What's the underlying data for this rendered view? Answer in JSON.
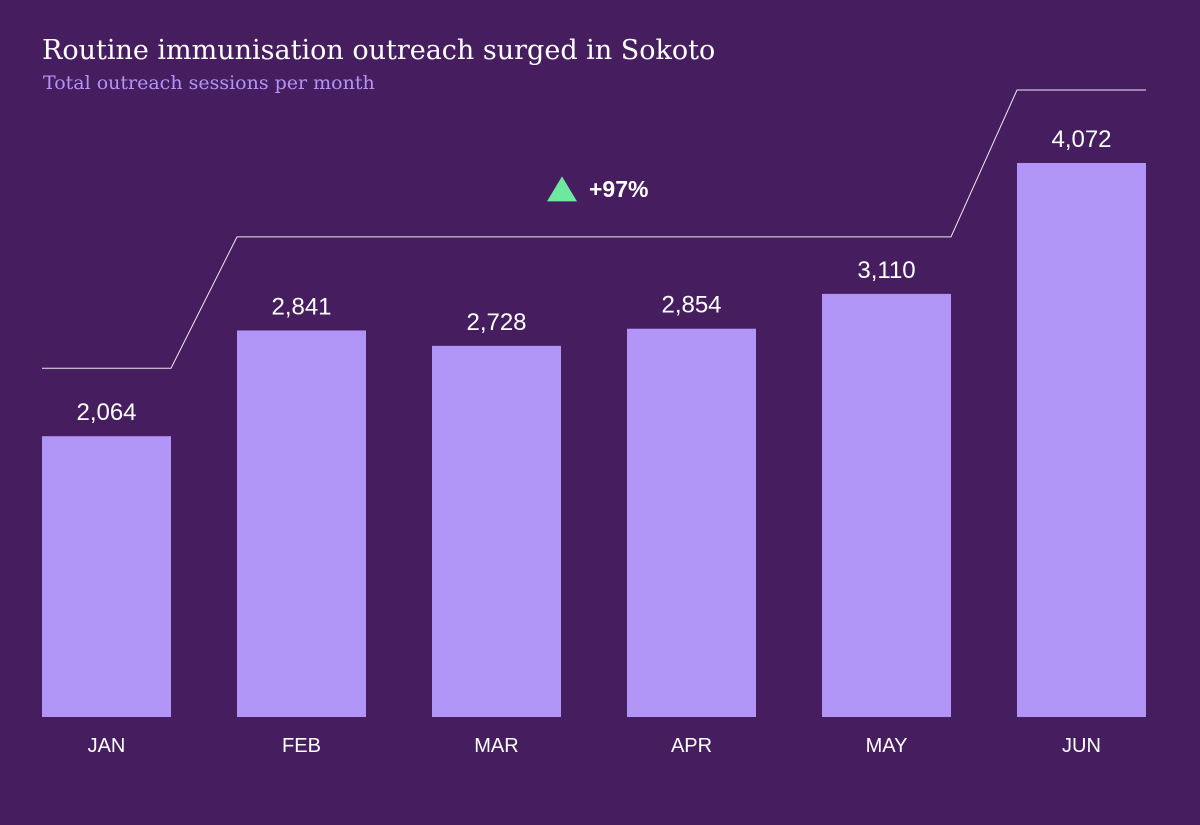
{
  "title": "Routine immunisation outreach surged in Sokoto",
  "subtitle": "Total outreach sessions per month",
  "colors": {
    "background": "#461e5f",
    "bar": "#b094f6",
    "text": "#ffffff",
    "subtitle": "#b294f7",
    "connector": "#ffffff",
    "up_arrow": "#6ee7a0"
  },
  "chart_data": {
    "type": "bar",
    "title": "Routine immunisation outreach surged in Sokoto",
    "subtitle": "Total outreach sessions per month",
    "categories": [
      "JAN",
      "FEB",
      "MAR",
      "APR",
      "MAY",
      "JUN"
    ],
    "values": [
      2064,
      2841,
      2728,
      2854,
      3110,
      4072
    ],
    "value_labels": [
      "2,064",
      "2,841",
      "2,728",
      "2,854",
      "3,110",
      "4,072"
    ],
    "ylim": [
      0,
      4500
    ],
    "grid": false,
    "legend": "none",
    "xlabel": "",
    "ylabel": "",
    "annotation": {
      "from_category": "JAN",
      "to_category": "JUN",
      "label": "+97%",
      "direction": "up"
    }
  }
}
